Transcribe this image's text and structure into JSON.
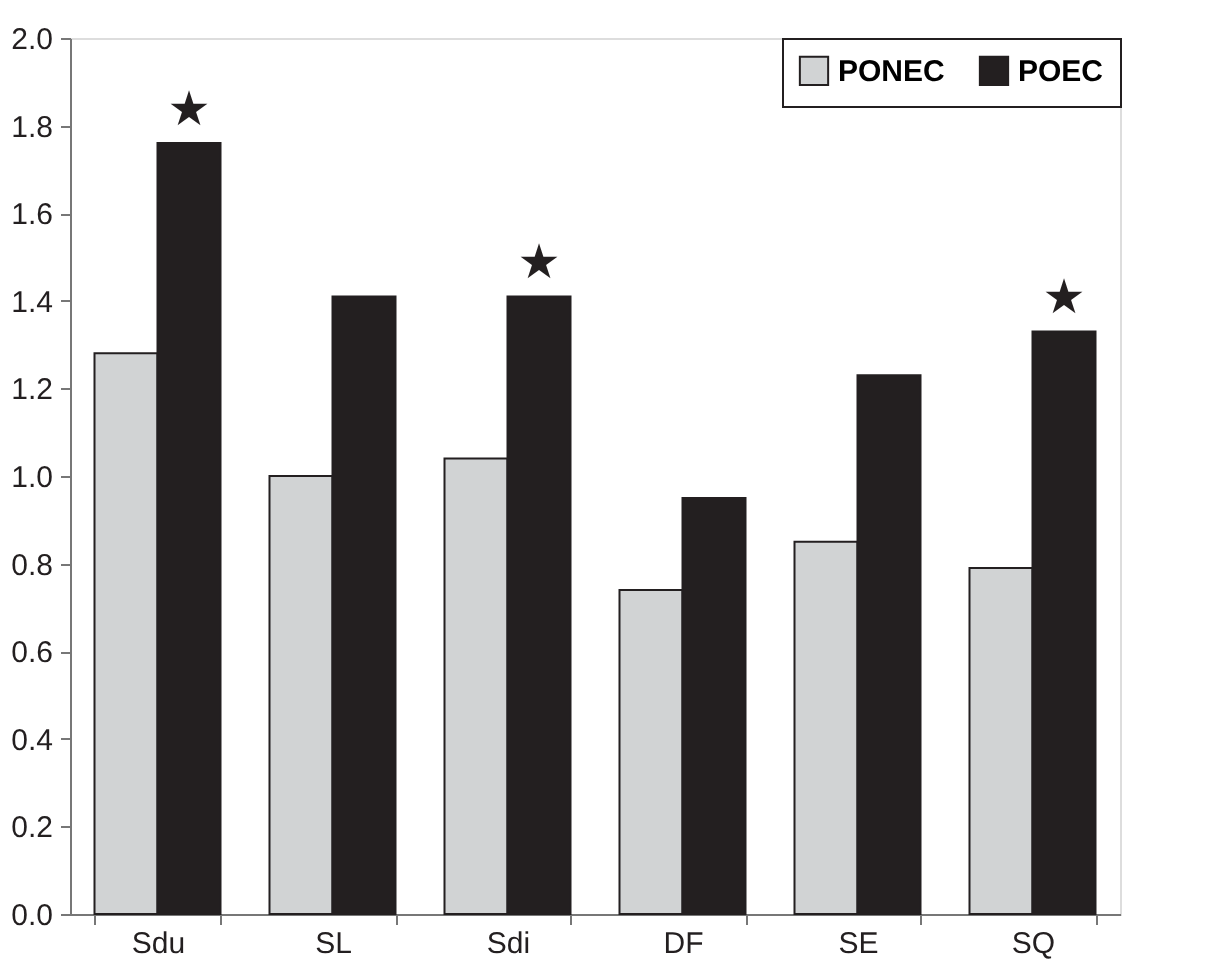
{
  "chart_data": {
    "type": "bar",
    "categories": [
      "Sdu",
      "SL",
      "Sdi",
      "DF",
      "SE",
      "SQ"
    ],
    "series": [
      {
        "name": "PONEC",
        "color": "#d1d3d4",
        "values": [
          1.28,
          1.0,
          1.04,
          0.74,
          0.85,
          0.79
        ]
      },
      {
        "name": "POEC",
        "color": "#231f20",
        "values": [
          1.76,
          1.41,
          1.41,
          0.95,
          1.23,
          1.33
        ]
      }
    ],
    "ylim": [
      0,
      2.0
    ],
    "yticks": [
      {
        "value": 0,
        "label": "0.0"
      },
      {
        "value": 0.2,
        "label": "0.2"
      },
      {
        "value": 0.4,
        "label": "0.4"
      },
      {
        "value": 0.6,
        "label": "0.6"
      },
      {
        "value": 0.8,
        "label": "0.8"
      },
      {
        "value": 1.0,
        "label": "1.0"
      },
      {
        "value": 1.2,
        "label": "1.2"
      },
      {
        "value": 1.4,
        "label": "1.4"
      },
      {
        "value": 1.6,
        "label": "1.6"
      },
      {
        "value": 1.8,
        "label": "1.8"
      },
      {
        "value": 2.0,
        "label": "2.0"
      }
    ],
    "annotations": [
      {
        "text": "★",
        "x": "Sdu",
        "y": 1.76
      },
      {
        "text": "★",
        "x": "Sdi",
        "y": 1.41
      },
      {
        "text": "★",
        "x": "SQ",
        "y": 1.33
      }
    ],
    "grid": false,
    "legend": "top right"
  }
}
